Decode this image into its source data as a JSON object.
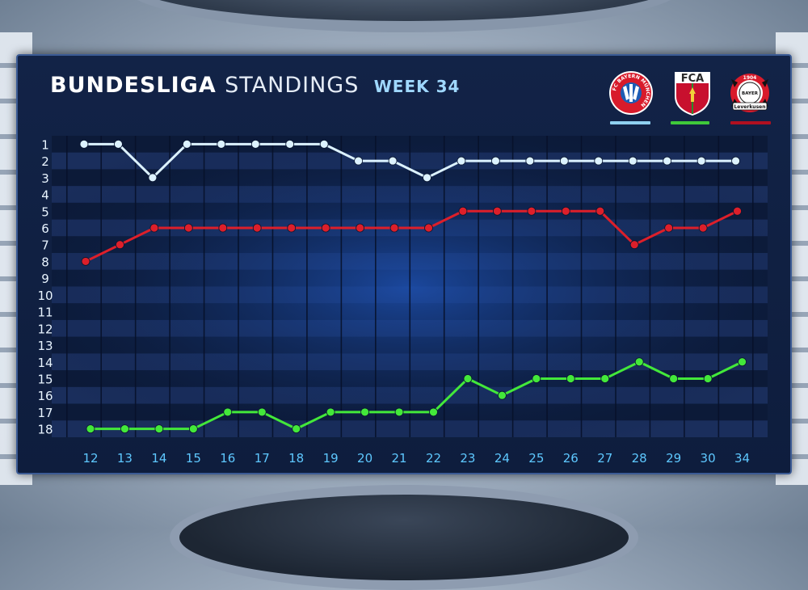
{
  "header": {
    "title_bold": "BUNDESLIGA",
    "title_regular": "STANDINGS",
    "week_label": "WEEK 34"
  },
  "logos": {
    "bayern": {
      "ring_text": "FC BAYERN MÜNCHEN",
      "name": "bayern-munich-logo"
    },
    "augsburg": {
      "text": "FCA",
      "name": "fc-augsburg-logo"
    },
    "leverkusen": {
      "top_text": "1904",
      "center_text": "BAYER",
      "banner_text": "Leverkusen",
      "name": "bayer-leverkusen-logo"
    }
  },
  "colors": {
    "bayern": "#dcf2ff",
    "augsburg": "#43e83a",
    "leverkusen": "#dd1f2a",
    "bayern_underline": "#8fd0f0",
    "augsburg_underline": "#3fc93a",
    "leverkusen_underline": "#b01020"
  },
  "chart_data": {
    "type": "line",
    "title": "BUNDESLIGA STANDINGS WEEK 34",
    "x": [
      "12",
      "13",
      "14",
      "15",
      "16",
      "17",
      "18",
      "19",
      "20",
      "21",
      "22",
      "23",
      "24",
      "25",
      "26",
      "27",
      "28",
      "29",
      "30",
      "34"
    ],
    "y_ticks": [
      1,
      2,
      3,
      4,
      5,
      6,
      7,
      8,
      9,
      10,
      11,
      12,
      13,
      14,
      15,
      16,
      17,
      18
    ],
    "ylim": [
      1,
      18
    ],
    "y_inverted": true,
    "grid": true,
    "series": [
      {
        "key": "bayern",
        "values": [
          1,
          1,
          3,
          1,
          1,
          1,
          1,
          1,
          2,
          2,
          3,
          2,
          2,
          2,
          2,
          2,
          2,
          2,
          2,
          2
        ]
      },
      {
        "key": "leverkusen",
        "values": [
          8,
          7,
          6,
          6,
          6,
          6,
          6,
          6,
          6,
          6,
          6,
          5,
          5,
          5,
          5,
          5,
          7,
          6,
          6,
          5
        ]
      },
      {
        "key": "augsburg",
        "values": [
          18,
          18,
          18,
          18,
          17,
          17,
          18,
          17,
          17,
          17,
          17,
          15,
          16,
          15,
          15,
          15,
          14,
          15,
          15,
          14
        ]
      }
    ]
  }
}
